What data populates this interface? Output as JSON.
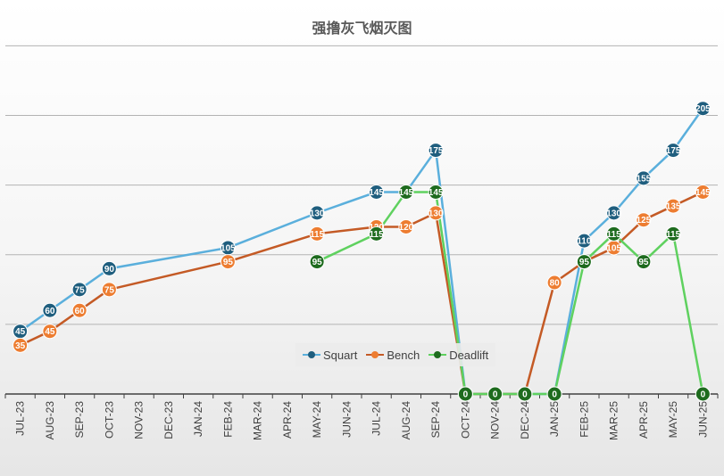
{
  "chart_data": {
    "type": "line",
    "title": "强撸灰飞烟灭图",
    "xlabel": "",
    "ylabel": "",
    "ylim": [
      0,
      250
    ],
    "grid": true,
    "legend_position": "bottom-center",
    "categories": [
      "JUL-23",
      "AUG-23",
      "SEP-23",
      "OCT-23",
      "NOV-23",
      "DEC-23",
      "JAN-24",
      "FEB-24",
      "MAR-24",
      "APR-24",
      "MAY-24",
      "JUN-24",
      "JUL-24",
      "AUG-24",
      "SEP-24",
      "OCT-24",
      "NOV-24",
      "DEC-24",
      "JAN-25",
      "FEB-25",
      "MAR-25",
      "APR-25",
      "MAY-25",
      "JUN-25"
    ],
    "series": [
      {
        "name": "Squart",
        "line_color": "#5aafdc",
        "marker_color": "#1f5e7e",
        "values": [
          45,
          60,
          75,
          90,
          null,
          null,
          null,
          105,
          null,
          null,
          130,
          null,
          145,
          145,
          175,
          0,
          0,
          0,
          0,
          110,
          130,
          155,
          175,
          205
        ]
      },
      {
        "name": "Bench",
        "line_color": "#c45a25",
        "marker_color": "#ed7d31",
        "values": [
          35,
          45,
          60,
          75,
          null,
          null,
          null,
          95,
          null,
          null,
          115,
          null,
          120,
          120,
          130,
          0,
          0,
          0,
          80,
          95,
          105,
          125,
          135,
          145
        ]
      },
      {
        "name": "Deadlift",
        "line_color": "#5fd15f",
        "marker_color": "#1e6b1e",
        "values": [
          null,
          null,
          null,
          null,
          null,
          null,
          null,
          null,
          null,
          null,
          95,
          null,
          115,
          145,
          145,
          0,
          0,
          0,
          0,
          95,
          115,
          95,
          115,
          0
        ]
      }
    ]
  }
}
